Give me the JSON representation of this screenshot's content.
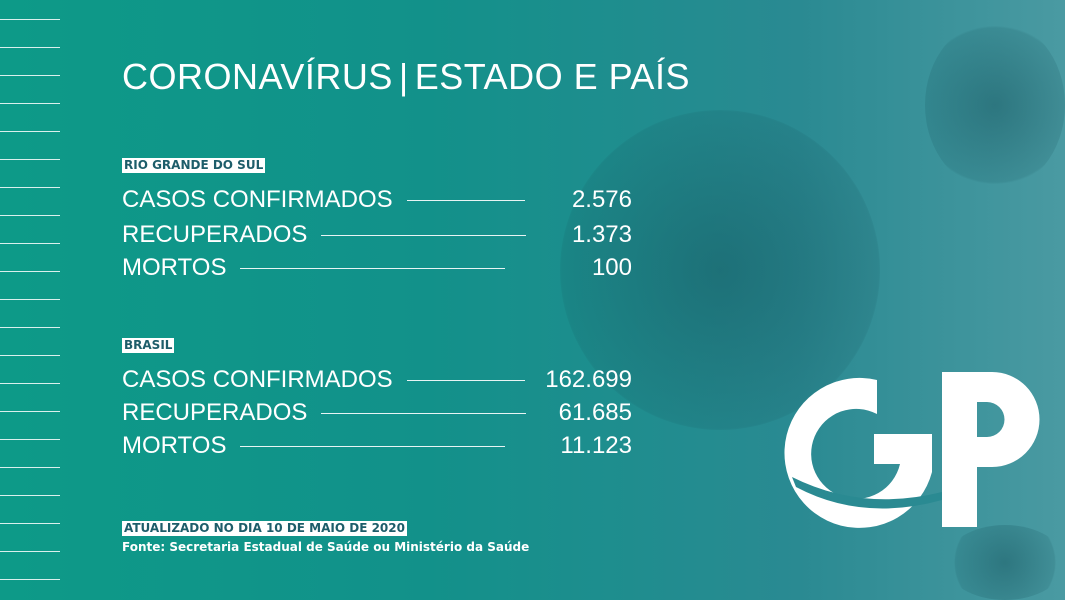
{
  "title": {
    "left": "CORONAVÍRUS",
    "separator": "|",
    "right": "ESTADO E PAÍS"
  },
  "sections": [
    {
      "label": "RIO GRANDE DO SUL",
      "rows": [
        {
          "label": "CASOS CONFIRMADOS",
          "value": "2.576"
        },
        {
          "label": "RECUPERADOS",
          "value": "1.373"
        },
        {
          "label": "MORTOS",
          "value": "100"
        }
      ]
    },
    {
      "label": "BRASIL",
      "rows": [
        {
          "label": "CASOS CONFIRMADOS",
          "value": "162.699"
        },
        {
          "label": "RECUPERADOS",
          "value": "61.685"
        },
        {
          "label": "MORTOS",
          "value": "11.123"
        }
      ]
    }
  ],
  "footer": {
    "updated": "ATUALIZADO NO DIA 10 DE MAIO DE 2020",
    "source": "Fonte: Secretaria Estadual de Saúde ou Ministério da Saúde"
  },
  "logo": {
    "text": "GP"
  },
  "colors": {
    "background": "#0d9a88",
    "label_text": "#1d5d6a"
  }
}
